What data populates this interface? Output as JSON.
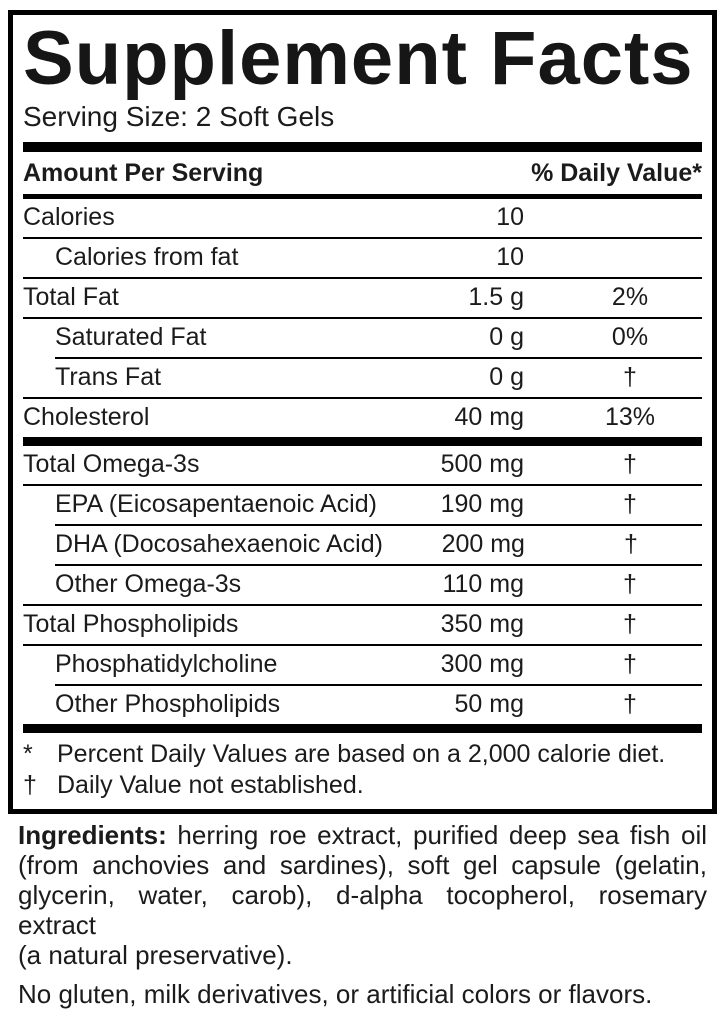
{
  "title": "Supplement Facts",
  "serving_size": "Serving Size: 2 Soft Gels",
  "header": {
    "amount_label": "Amount Per Serving",
    "dv_label": "% Daily Value*"
  },
  "rows": [
    {
      "name": "Calories",
      "amount": "10",
      "dv": "",
      "indent": false
    },
    {
      "name": "Calories from fat",
      "amount": "10",
      "dv": "",
      "indent": true
    },
    {
      "name": "Total Fat",
      "amount": "1.5 g",
      "dv": "2%",
      "indent": false
    },
    {
      "name": "Saturated Fat",
      "amount": "0 g",
      "dv": "0%",
      "indent": true
    },
    {
      "name": "Trans Fat",
      "amount": "0 g",
      "dv": "†",
      "indent": true
    },
    {
      "name": "Cholesterol",
      "amount": "40 mg",
      "dv": "13%",
      "indent": false
    },
    {
      "name": "Total Omega-3s",
      "amount": "500 mg",
      "dv": "†",
      "indent": false
    },
    {
      "name": "EPA (Eicosapentaenoic Acid)",
      "amount": "190 mg",
      "dv": "†",
      "indent": true
    },
    {
      "name": "DHA (Docosahexaenoic Acid)",
      "amount": "200 mg",
      "dv": "†",
      "indent": true
    },
    {
      "name": "Other Omega-3s",
      "amount": "110 mg",
      "dv": "†",
      "indent": true
    },
    {
      "name": "Total Phospholipids",
      "amount": "350 mg",
      "dv": "†",
      "indent": false
    },
    {
      "name": "Phosphatidylcholine",
      "amount": "300 mg",
      "dv": "†",
      "indent": true
    },
    {
      "name": "Other Phospholipids",
      "amount": "50 mg",
      "dv": "†",
      "indent": true
    }
  ],
  "footnotes": [
    {
      "symbol": "*",
      "text": "Percent Daily Values are based on a 2,000 calorie diet."
    },
    {
      "symbol": "†",
      "text": "Daily Value not established."
    }
  ],
  "ingredients": {
    "label": "Ingredients:",
    "line1_rest": " herring roe extract, purified deep sea fish oil",
    "line2": "(from anchovies and sardines), soft gel capsule (gelatin,",
    "line3": "glycerin, water, carob), d-alpha tocopherol, rosemary extract",
    "line4": "(a natural preservative)."
  },
  "allergen_note": "No gluten, milk derivatives, or artificial colors or flavors.",
  "colors": {
    "ink": "#1b1b1b",
    "bar": "#000000",
    "background": "#ffffff"
  }
}
